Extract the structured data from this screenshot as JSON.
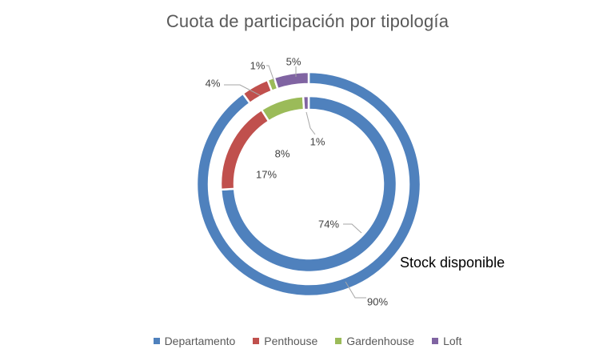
{
  "chart_data": {
    "type": "donut",
    "title": "Cuota de participación por tipología",
    "categories": [
      "Departamento",
      "Penthouse",
      "Gardenhouse",
      "Loft"
    ],
    "colors": [
      "#4F81BD",
      "#C0504D",
      "#9BBB59",
      "#8064A2"
    ],
    "series": [
      {
        "ring": "outer",
        "name": "Stock disponible",
        "values": [
          90,
          4,
          1,
          5
        ],
        "labels": [
          "90%",
          "4%",
          "1%",
          "5%"
        ]
      },
      {
        "ring": "inner",
        "values": [
          74,
          17,
          8,
          1
        ],
        "labels": [
          "74%",
          "17%",
          "8%",
          "1%"
        ]
      }
    ],
    "legend_position": "bottom"
  }
}
